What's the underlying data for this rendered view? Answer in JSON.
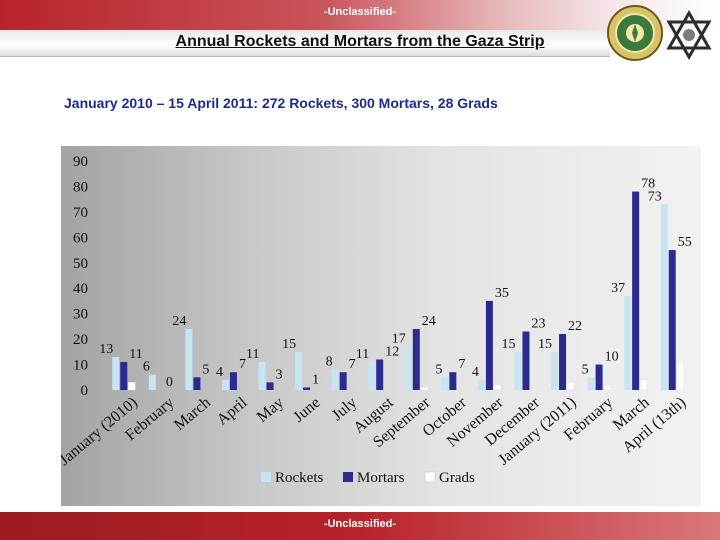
{
  "header": {
    "classification_top": "-Unclassified-",
    "title": "Annual Rockets and Mortars from the Gaza Strip",
    "emblem_icon": "emblem-icon",
    "logo_icon": "star-logo-icon"
  },
  "subtitle": "January 2010 – 15 April 2011: 272 Rockets, 300 Mortars, 28 Grads",
  "footer": {
    "classification_bottom": "-Unclassified-"
  },
  "colors": {
    "rockets": "#c6e4f2",
    "mortars": "#2b2b8f",
    "grads": "#ffffff",
    "accent_red": "#b8232a",
    "subtitle_blue": "#1d2b8a"
  },
  "chart_data": {
    "type": "bar",
    "ylim": [
      0,
      90
    ],
    "yticks": [
      0,
      10,
      20,
      30,
      40,
      50,
      60,
      70,
      80,
      90
    ],
    "grid": false,
    "legend": "bottom",
    "categories": [
      "January (2010)",
      "February",
      "March",
      "April",
      "May",
      "June",
      "July",
      "August",
      "September",
      "October",
      "November",
      "December",
      "January (2011)",
      "February",
      "March",
      "April (13th)"
    ],
    "series": [
      {
        "name": "Rockets",
        "values": [
          13,
          6,
          24,
          4,
          11,
          15,
          8,
          11,
          17,
          5,
          4,
          15,
          15,
          5,
          37,
          73
        ]
      },
      {
        "name": "Mortars",
        "values": [
          11,
          0,
          5,
          7,
          3,
          1,
          7,
          12,
          24,
          7,
          35,
          23,
          22,
          10,
          78,
          55
        ]
      },
      {
        "name": "Grads",
        "values": [
          3,
          0,
          0,
          0,
          0,
          0,
          0,
          0,
          1,
          0,
          2,
          0,
          3,
          2,
          4,
          11
        ]
      }
    ],
    "data_labels": {
      "Rockets": [
        "13",
        "6",
        "24",
        "4",
        "11",
        "15",
        "8",
        "11",
        "17",
        "5",
        "4",
        "15",
        "15",
        "5",
        "37",
        "73"
      ],
      "Mortars": [
        "11",
        "0",
        "5",
        "7",
        "3",
        "1",
        "7",
        "12",
        "24",
        "7",
        "35",
        "23",
        "22",
        "10",
        "78",
        "55"
      ]
    }
  }
}
